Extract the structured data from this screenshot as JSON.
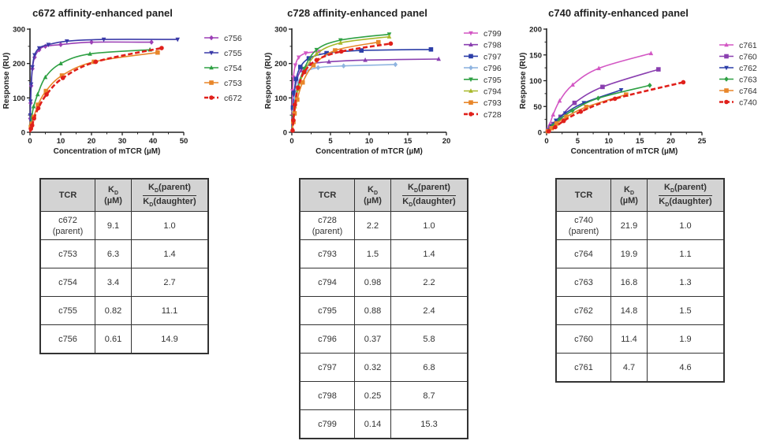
{
  "chart_data": [
    {
      "type": "line",
      "title": "c672 affinity-enhanced panel",
      "xlabel": "Concentration of mTCR (µM)",
      "ylabel": "Response (RU)",
      "xlim": [
        0,
        50
      ],
      "ylim": [
        0,
        300
      ],
      "xticks": [
        "0",
        "10",
        "20",
        "30",
        "40",
        "50"
      ],
      "yticks": [
        "0",
        "100",
        "200",
        "300"
      ],
      "grid": false,
      "legend_position": "right",
      "series": [
        {
          "name": "c756",
          "color": "#9b3fb5",
          "marker": "diamond",
          "dashed": false,
          "x": [
            0.1,
            0.2,
            0.4,
            0.8,
            1.5,
            3,
            5,
            10,
            20,
            39.5
          ],
          "y": [
            40,
            85,
            135,
            185,
            218,
            240,
            250,
            255,
            262,
            262
          ]
        },
        {
          "name": "c755",
          "color": "#3a3aa8",
          "marker": "triangle-down",
          "dashed": false,
          "x": [
            0.1,
            0.2,
            0.4,
            0.8,
            1.5,
            3,
            6,
            12,
            24,
            48
          ],
          "y": [
            50,
            90,
            140,
            190,
            225,
            245,
            255,
            265,
            270,
            270
          ]
        },
        {
          "name": "c754",
          "color": "#2ea043",
          "marker": "triangle",
          "dashed": false,
          "x": [
            0.3,
            0.6,
            1.2,
            2.5,
            5,
            10,
            19.5,
            39
          ],
          "y": [
            25,
            45,
            75,
            110,
            160,
            200,
            228,
            240
          ]
        },
        {
          "name": "c753",
          "color": "#e8862a",
          "marker": "square",
          "dashed": false,
          "x": [
            0.3,
            0.6,
            1.3,
            2.6,
            5.2,
            10.4,
            20.8,
            41.5
          ],
          "y": [
            15,
            25,
            45,
            80,
            120,
            165,
            205,
            232
          ]
        },
        {
          "name": "c672",
          "color": "#e0201b",
          "marker": "circle",
          "dashed": true,
          "x": [
            0.3,
            0.7,
            1.3,
            2.7,
            5.4,
            10.7,
            21.4,
            42.8
          ],
          "y": [
            10,
            20,
            40,
            70,
            110,
            158,
            205,
            245
          ]
        }
      ]
    },
    {
      "type": "line",
      "title": "c728 affinity-enhanced panel",
      "xlabel": "Concentration of mTCR (µM)",
      "ylabel": "Response (RU)",
      "xlim": [
        0,
        20
      ],
      "ylim": [
        0,
        300
      ],
      "xticks": [
        "0",
        "5",
        "10",
        "15",
        "20"
      ],
      "yticks": [
        "0",
        "100",
        "200",
        "300"
      ],
      "grid": false,
      "legend_position": "right",
      "series": [
        {
          "name": "c799",
          "color": "#d357c4",
          "marker": "triangle-down",
          "dashed": false,
          "x": [
            0.1,
            0.2,
            0.45,
            0.9,
            1.8,
            3.6
          ],
          "y": [
            120,
            160,
            195,
            218,
            230,
            235
          ]
        },
        {
          "name": "c798",
          "color": "#8a3fb0",
          "marker": "triangle",
          "dashed": false,
          "x": [
            0.15,
            0.3,
            0.6,
            1.2,
            2.4,
            4.8,
            9.5,
            19
          ],
          "y": [
            70,
            110,
            150,
            180,
            198,
            205,
            210,
            213
          ]
        },
        {
          "name": "c797",
          "color": "#2c3ea8",
          "marker": "square",
          "dashed": false,
          "x": [
            0.15,
            0.3,
            0.55,
            1.1,
            2.2,
            4.5,
            9,
            18
          ],
          "y": [
            72,
            115,
            155,
            190,
            215,
            230,
            238,
            241
          ]
        },
        {
          "name": "c796",
          "color": "#8fb4e0",
          "marker": "diamond",
          "dashed": false,
          "x": [
            0.2,
            0.4,
            0.85,
            1.7,
            3.4,
            6.7,
            13.4
          ],
          "y": [
            60,
            100,
            145,
            175,
            188,
            193,
            197
          ]
        },
        {
          "name": "c795",
          "color": "#2ea043",
          "marker": "triangle-down",
          "dashed": false,
          "x": [
            0.2,
            0.4,
            0.8,
            1.6,
            3.2,
            6.3,
            12.6
          ],
          "y": [
            45,
            80,
            130,
            185,
            240,
            268,
            285
          ]
        },
        {
          "name": "c794",
          "color": "#a8b82a",
          "marker": "triangle",
          "dashed": false,
          "x": [
            0.2,
            0.4,
            0.8,
            1.6,
            3.2,
            6.3,
            12.6
          ],
          "y": [
            40,
            75,
            125,
            175,
            228,
            260,
            278
          ]
        },
        {
          "name": "c793",
          "color": "#e8862a",
          "marker": "square",
          "dashed": false,
          "x": [
            0.2,
            0.35,
            0.7,
            1.4,
            2.8,
            5.6,
            11.2
          ],
          "y": [
            30,
            55,
            95,
            145,
            195,
            238,
            262
          ]
        },
        {
          "name": "c728",
          "color": "#e0201b",
          "marker": "circle",
          "dashed": true,
          "x": [
            0.1,
            0.2,
            0.4,
            0.8,
            1.6,
            3.2,
            6.4,
            12.8
          ],
          "y": [
            5,
            35,
            80,
            130,
            175,
            210,
            235,
            258
          ]
        }
      ]
    },
    {
      "type": "line",
      "title": "c740 affinity-enhanced panel",
      "xlabel": "Concentration of mTCR (µM)",
      "ylabel": "Response (RU)",
      "xlim": [
        0,
        25
      ],
      "ylim": [
        0,
        200
      ],
      "xticks": [
        "0",
        "5",
        "10",
        "15",
        "20",
        "25"
      ],
      "yticks": [
        "0",
        "50",
        "100",
        "150",
        "200"
      ],
      "grid": false,
      "legend_position": "right",
      "series": [
        {
          "name": "c761",
          "color": "#d357c4",
          "marker": "triangle",
          "dashed": false,
          "x": [
            0.1,
            0.5,
            1.05,
            2.1,
            4.2,
            8.4,
            16.8
          ],
          "y": [
            5,
            15,
            34,
            61,
            92,
            124,
            153
          ]
        },
        {
          "name": "c760",
          "color": "#8a3fb0",
          "marker": "square",
          "dashed": false,
          "x": [
            0.3,
            0.6,
            1.1,
            2.25,
            4.5,
            9,
            18
          ],
          "y": [
            4,
            9,
            16,
            30,
            57,
            88,
            122
          ]
        },
        {
          "name": "c762",
          "color": "#2c3ea8",
          "marker": "triangle-down",
          "dashed": false,
          "x": [
            0.2,
            0.75,
            1.5,
            3,
            6,
            12
          ],
          "y": [
            3,
            12,
            23,
            37,
            57,
            82
          ]
        },
        {
          "name": "c763",
          "color": "#2ea043",
          "marker": "diamond",
          "dashed": false,
          "x": [
            0.25,
            1.05,
            2.1,
            4.15,
            8.3,
            16.6
          ],
          "y": [
            3,
            13,
            25,
            42,
            66,
            91
          ]
        },
        {
          "name": "c764",
          "color": "#e8862a",
          "marker": "square",
          "dashed": false,
          "x": [
            0.2,
            0.8,
            1.6,
            3.2,
            6.4,
            12.8
          ],
          "y": [
            2,
            8,
            17,
            30,
            49,
            73
          ]
        },
        {
          "name": "c740",
          "color": "#e0201b",
          "marker": "circle",
          "dashed": true,
          "x": [
            0.35,
            1.4,
            2.75,
            5.5,
            11,
            22
          ],
          "y": [
            2,
            10,
            22,
            40,
            65,
            97
          ]
        }
      ]
    }
  ],
  "tables": [
    {
      "headers": {
        "tcr": "TCR",
        "kd_top": "K",
        "kd_sub": "D",
        "kd_unit": "(µM)",
        "ratio_num_k": "K",
        "ratio_num_sub": "D",
        "ratio_num_rest": "(parent)",
        "ratio_den_k": "K",
        "ratio_den_sub": "D",
        "ratio_den_rest": "(daughter)"
      },
      "rows": [
        {
          "tcr": "c672",
          "tcr_note": "(parent)",
          "kd": "9.1",
          "ratio": "1.0"
        },
        {
          "tcr": "c753",
          "tcr_note": "",
          "kd": "6.3",
          "ratio": "1.4"
        },
        {
          "tcr": "c754",
          "tcr_note": "",
          "kd": "3.4",
          "ratio": "2.7"
        },
        {
          "tcr": "c755",
          "tcr_note": "",
          "kd": "0.82",
          "ratio": "11.1"
        },
        {
          "tcr": "c756",
          "tcr_note": "",
          "kd": "0.61",
          "ratio": "14.9"
        }
      ]
    },
    {
      "headers": {
        "tcr": "TCR",
        "kd_top": "K",
        "kd_sub": "D",
        "kd_unit": "(µM)",
        "ratio_num_k": "K",
        "ratio_num_sub": "D",
        "ratio_num_rest": "(parent)",
        "ratio_den_k": "K",
        "ratio_den_sub": "D",
        "ratio_den_rest": "(daughter)"
      },
      "rows": [
        {
          "tcr": "c728",
          "tcr_note": "(parent)",
          "kd": "2.2",
          "ratio": "1.0"
        },
        {
          "tcr": "c793",
          "tcr_note": "",
          "kd": "1.5",
          "ratio": "1.4"
        },
        {
          "tcr": "c794",
          "tcr_note": "",
          "kd": "0.98",
          "ratio": "2.2"
        },
        {
          "tcr": "c795",
          "tcr_note": "",
          "kd": "0.88",
          "ratio": "2.4"
        },
        {
          "tcr": "c796",
          "tcr_note": "",
          "kd": "0.37",
          "ratio": "5.8"
        },
        {
          "tcr": "c797",
          "tcr_note": "",
          "kd": "0.32",
          "ratio": "6.8"
        },
        {
          "tcr": "c798",
          "tcr_note": "",
          "kd": "0.25",
          "ratio": "8.7"
        },
        {
          "tcr": "c799",
          "tcr_note": "",
          "kd": "0.14",
          "ratio": "15.3"
        }
      ]
    },
    {
      "headers": {
        "tcr": "TCR",
        "kd_top": "K",
        "kd_sub": "D",
        "kd_unit": "(µM)",
        "ratio_num_k": "K",
        "ratio_num_sub": "D",
        "ratio_num_rest": "(parent)",
        "ratio_den_k": "K",
        "ratio_den_sub": "D",
        "ratio_den_rest": "(daughter)"
      },
      "rows": [
        {
          "tcr": "c740",
          "tcr_note": "(parent)",
          "kd": "21.9",
          "ratio": "1.0"
        },
        {
          "tcr": "c764",
          "tcr_note": "",
          "kd": "19.9",
          "ratio": "1.1"
        },
        {
          "tcr": "c763",
          "tcr_note": "",
          "kd": "16.8",
          "ratio": "1.3"
        },
        {
          "tcr": "c762",
          "tcr_note": "",
          "kd": "14.8",
          "ratio": "1.5"
        },
        {
          "tcr": "c760",
          "tcr_note": "",
          "kd": "11.4",
          "ratio": "1.9"
        },
        {
          "tcr": "c761",
          "tcr_note": "",
          "kd": "4.7",
          "ratio": "4.6"
        }
      ]
    }
  ]
}
